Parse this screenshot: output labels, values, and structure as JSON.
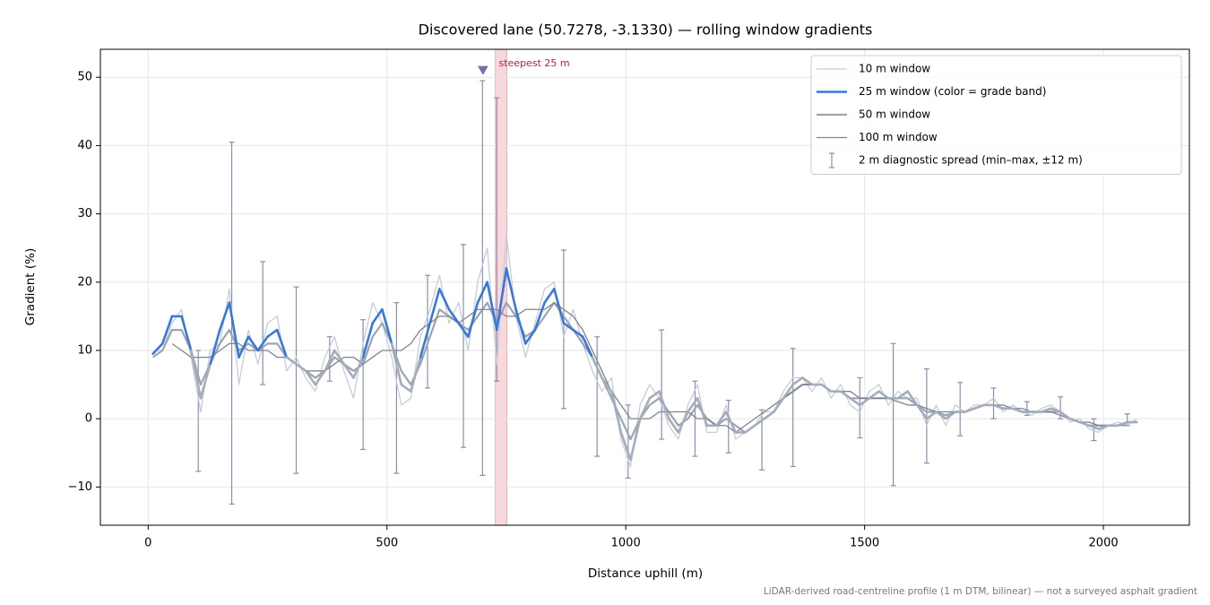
{
  "chart_data": {
    "type": "line",
    "title": "Discovered lane (50.7278, -3.1330) — rolling window gradients",
    "xlabel": "Distance uphill (m)",
    "ylabel": "Gradient (%)",
    "note": "LiDAR-derived road-centreline profile (1 m DTM, bilinear) — not a surveyed asphalt gradient",
    "xlim": [
      -100,
      2180
    ],
    "ylim": [
      -15.6,
      54.1
    ],
    "xticks": [
      0,
      500,
      1000,
      1500,
      2000
    ],
    "yticks": [
      {
        "value": -10,
        "label": "−10"
      },
      0,
      10,
      20,
      30,
      40,
      50
    ],
    "grid": true,
    "legend": "upper right",
    "x": [
      10,
      30,
      50,
      70,
      90,
      110,
      130,
      150,
      170,
      190,
      210,
      230,
      250,
      270,
      290,
      310,
      330,
      350,
      370,
      390,
      410,
      430,
      450,
      470,
      490,
      510,
      530,
      550,
      570,
      590,
      610,
      630,
      650,
      670,
      690,
      710,
      730,
      750,
      770,
      790,
      810,
      830,
      850,
      870,
      890,
      910,
      930,
      950,
      970,
      990,
      1010,
      1030,
      1050,
      1070,
      1090,
      1110,
      1130,
      1150,
      1170,
      1190,
      1210,
      1230,
      1250,
      1270,
      1290,
      1310,
      1330,
      1350,
      1370,
      1390,
      1410,
      1430,
      1450,
      1470,
      1490,
      1510,
      1530,
      1550,
      1570,
      1590,
      1610,
      1630,
      1650,
      1670,
      1690,
      1710,
      1730,
      1750,
      1770,
      1790,
      1810,
      1830,
      1850,
      1870,
      1890,
      1910,
      1930,
      1950,
      1970,
      1990,
      2010,
      2030,
      2050,
      2070
    ],
    "series": [
      {
        "name": "10 m window",
        "color": "#c6cdd6",
        "values": [
          10,
          10,
          14,
          16,
          9,
          1,
          10,
          11,
          19,
          5,
          13,
          8,
          14,
          15,
          7,
          9,
          6,
          4,
          9,
          12,
          7,
          3,
          11,
          17,
          14,
          9,
          2,
          3,
          12,
          16,
          21,
          14,
          17,
          10,
          20,
          25,
          8,
          27,
          15,
          9,
          14,
          19,
          20,
          12,
          16,
          11,
          7,
          4,
          6,
          -3,
          -7,
          2,
          5,
          3,
          -1,
          -3,
          2,
          5,
          -2,
          -2,
          2,
          -3,
          -2,
          -1,
          1,
          1,
          4,
          6,
          6,
          4,
          6,
          3,
          5,
          2,
          1,
          4,
          5,
          2,
          4,
          3,
          3,
          -1,
          2,
          -1,
          2,
          1,
          2,
          2,
          3,
          1,
          2,
          1,
          0.5,
          1.5,
          2,
          1,
          -0.5,
          0,
          -1.5,
          -2,
          -1,
          -0.5,
          -1,
          0
        ]
      },
      {
        "name": "25 m window (color = grade band)",
        "color": "#3a78d6",
        "grade_band_edges": [
          10,
          20
        ],
        "grade_band_colors": [
          "#a3adbb",
          "#3a78d6",
          "#e8890c"
        ],
        "values": [
          9.5,
          11,
          15,
          15,
          10,
          3,
          8,
          13,
          17,
          9,
          12,
          10,
          12,
          13,
          9,
          8,
          7,
          5,
          7,
          10,
          8,
          6,
          9,
          14,
          16,
          11,
          5,
          4,
          9,
          14,
          19,
          16,
          14,
          12,
          17,
          20,
          13,
          22,
          16,
          11,
          13,
          17,
          19,
          14,
          13,
          12,
          9,
          6,
          4,
          -2,
          -6,
          0,
          3,
          4,
          0,
          -2,
          1,
          3,
          -1,
          -1,
          1,
          -2,
          -2,
          -1,
          0,
          1,
          3,
          5,
          6,
          5,
          5,
          4,
          4,
          3,
          2,
          3,
          4,
          3,
          3,
          4,
          2,
          0,
          1,
          0,
          1,
          1,
          1.5,
          2,
          2,
          1.5,
          1.5,
          1,
          1,
          1,
          1.5,
          1,
          0,
          -0.5,
          -1,
          -1.5,
          -1,
          -1,
          -0.5,
          -0.5
        ]
      },
      {
        "name": "50 m window",
        "color": "#9ba5b2",
        "values": [
          9,
          10,
          13,
          13,
          10,
          5,
          8,
          11,
          13,
          10,
          11,
          10,
          11,
          11,
          9,
          8,
          7,
          6,
          7,
          9,
          8,
          7,
          8,
          12,
          14,
          11,
          7,
          5,
          8,
          12,
          16,
          15,
          14,
          13,
          15,
          17,
          14,
          17,
          15,
          12,
          13,
          15,
          17,
          15,
          13,
          11,
          9,
          6,
          3,
          0,
          -3,
          0,
          2,
          3,
          1,
          -1,
          0,
          2,
          0,
          -1,
          0,
          -1,
          -2,
          -1,
          0,
          1,
          3,
          4,
          5,
          5,
          5,
          4,
          4,
          3,
          3,
          3,
          3,
          3,
          3,
          3,
          2,
          1,
          1,
          0.5,
          1,
          1,
          1.5,
          2,
          2,
          1.5,
          1.5,
          1,
          1,
          1,
          1,
          1,
          0,
          -0.5,
          -1,
          -1,
          -1,
          -1,
          -0.5,
          -0.5
        ]
      },
      {
        "name": "100 m window",
        "color": "#7d8492",
        "values": [
          null,
          null,
          11,
          10,
          9,
          9,
          9,
          10,
          11,
          11,
          10,
          10,
          10,
          9,
          9,
          8,
          7,
          7,
          7,
          8,
          9,
          9,
          8,
          9,
          10,
          10,
          10,
          11,
          13,
          14,
          15,
          15,
          14,
          15,
          16,
          16,
          16,
          15,
          15,
          16,
          16,
          16,
          17,
          16,
          15,
          13,
          10,
          7,
          4,
          2,
          0,
          0,
          0,
          1,
          1,
          1,
          1,
          0,
          0,
          -1,
          -1,
          -2,
          -1,
          0,
          1,
          2,
          3,
          4,
          5,
          5,
          5,
          4,
          4,
          4,
          3,
          3,
          3,
          3,
          2.5,
          2,
          2,
          1.5,
          1,
          1,
          1,
          1,
          1.5,
          2,
          2,
          2,
          1.5,
          1.5,
          1,
          1,
          1,
          0.5,
          0,
          -0.5,
          -0.5,
          -1,
          -1,
          -1,
          -1,
          null
        ]
      }
    ],
    "errorbars": {
      "name": "2 m diagnostic spread (min–max, ±12 m)",
      "color": "#908bb0",
      "x": [
        105,
        175,
        240,
        310,
        380,
        450,
        520,
        585,
        660,
        700,
        730,
        870,
        940,
        1005,
        1075,
        1145,
        1215,
        1285,
        1350,
        1490,
        1560,
        1630,
        1700,
        1770,
        1840,
        1910,
        1980,
        2050
      ],
      "lo": [
        -7.7,
        -12.5,
        5,
        -8,
        5.5,
        -4.5,
        -8,
        4.5,
        -4.2,
        -8.3,
        5.5,
        1.5,
        -5.5,
        -8.7,
        -3,
        -5.5,
        -5,
        -7.5,
        -7,
        -2.8,
        -9.8,
        -6.5,
        -2.5,
        0,
        0.5,
        0,
        -3.2,
        -1
      ],
      "hi": [
        10,
        40.5,
        23,
        19.3,
        12,
        14.5,
        17,
        21,
        25.5,
        49.5,
        47,
        24.7,
        12,
        2,
        13,
        5.5,
        2.7,
        1.3,
        10.3,
        6,
        11,
        7.3,
        5.3,
        4.5,
        2.5,
        3.2,
        0,
        0.7
      ]
    },
    "highlight": {
      "label": "steepest 25 m",
      "x0": 727,
      "x1": 751,
      "color": "#e8a0a8",
      "label_color": "#c0202f"
    },
    "peak_marker": {
      "x": 701,
      "y": 51,
      "color": "#7b6fa3"
    }
  }
}
